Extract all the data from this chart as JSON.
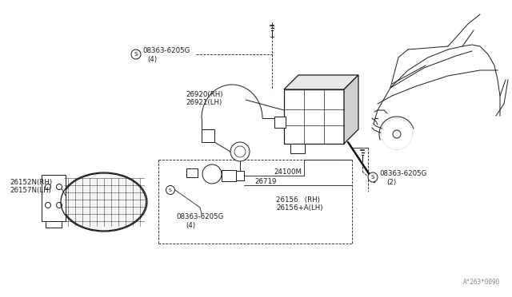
{
  "bg_color": "#ffffff",
  "line_color": "#1a1a1a",
  "watermark": "A*263*0090",
  "screw_top_label": "08363-6205G",
  "screw_top_qty": "(4)",
  "relay_label1": "26920(RH)",
  "relay_label2": "26921(LH)",
  "lamp_label1": "26152N(RH)",
  "lamp_label2": "26157N(LH)",
  "socket_label": "24100M",
  "bulb_label": "26719",
  "screw_bot_label": "08363-6205G",
  "screw_bot_qty": "(4)",
  "bracket_label1": "26156   (RH)",
  "bracket_label2": "26156+A(LH)",
  "screw_right_label": "08363-6205G",
  "screw_right_qty": "(2)"
}
